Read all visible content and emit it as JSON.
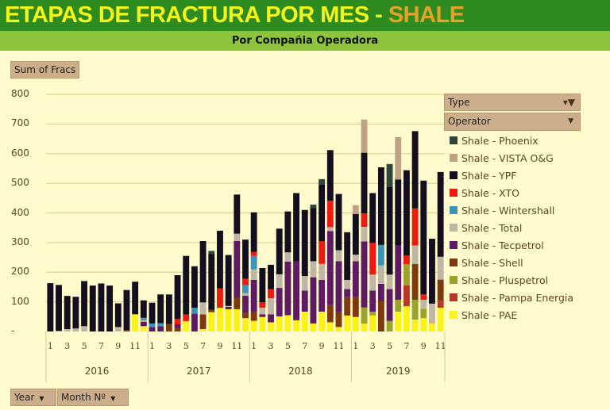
{
  "title": {
    "main": "ETAPAS DE FRACTURA POR MES - ",
    "highlight": "SHALE"
  },
  "subtitle": "Por Compañia Operadora",
  "value_field": "Sum of Fracs",
  "filters": {
    "type": "Type",
    "operator": "Operator",
    "year": "Year",
    "month": "Month Nº"
  },
  "colors": {
    "title_bg": "#2e8b1f",
    "subtitle_bg": "#8ec33c",
    "bg": "#fffbcc"
  },
  "chart_data": {
    "type": "bar",
    "stacked": true,
    "title": "ETAPAS DE FRACTURA POR MES - SHALE",
    "ylabel": "Sum of Fracs",
    "ylim": [
      0,
      800
    ],
    "yticks": [
      "-",
      "100",
      "200",
      "300",
      "400",
      "500",
      "600",
      "700",
      "800"
    ],
    "grid": true,
    "legend": "right",
    "years": [
      {
        "label": "2016",
        "months": 12
      },
      {
        "label": "2017",
        "months": 12
      },
      {
        "label": "2018",
        "months": 12
      },
      {
        "label": "2019",
        "months": 11
      }
    ],
    "month_labels": [
      "1",
      "",
      "3",
      "",
      "5",
      "",
      "7",
      "",
      "9",
      "",
      "11",
      ""
    ],
    "series": [
      {
        "name": "Shale - PAE",
        "color": "#fbf21a",
        "values": [
          0,
          0,
          0,
          0,
          0,
          0,
          0,
          0,
          0,
          0,
          58,
          18,
          0,
          0,
          0,
          0,
          35,
          0,
          8,
          65,
          80,
          75,
          75,
          45,
          36,
          49,
          31,
          51,
          55,
          38,
          67,
          27,
          67,
          31,
          15,
          54,
          49,
          27,
          54,
          0,
          0,
          67,
          85,
          40,
          45,
          27,
          80
        ]
      },
      {
        "name": "Shale - Pampa Energia",
        "color": "#b8362a",
        "values": [
          0,
          0,
          0,
          0,
          0,
          0,
          0,
          0,
          0,
          0,
          0,
          0,
          0,
          0,
          0,
          0,
          0,
          0,
          0,
          0,
          0,
          0,
          0,
          0,
          0,
          0,
          0,
          0,
          0,
          0,
          0,
          0,
          0,
          0,
          0,
          0,
          0,
          0,
          0,
          0,
          0,
          0,
          71,
          0,
          0,
          0,
          24
        ]
      },
      {
        "name": "Shale - Pluspetrol",
        "color": "#9aa32c",
        "values": [
          0,
          0,
          0,
          0,
          0,
          0,
          0,
          0,
          0,
          0,
          0,
          0,
          0,
          0,
          0,
          0,
          0,
          0,
          0,
          0,
          0,
          0,
          0,
          0,
          0,
          0,
          0,
          0,
          0,
          0,
          0,
          0,
          0,
          0,
          0,
          0,
          0,
          54,
          13,
          0,
          36,
          40,
          71,
          67,
          31,
          0,
          0
        ]
      },
      {
        "name": "Shale - Shell",
        "color": "#7e3a0c",
        "values": [
          0,
          0,
          0,
          0,
          0,
          0,
          0,
          0,
          0,
          5,
          0,
          0,
          0,
          0,
          25,
          12,
          0,
          0,
          50,
          8,
          0,
          0,
          40,
          18,
          31,
          0,
          0,
          0,
          0,
          0,
          0,
          0,
          0,
          58,
          52,
          62,
          67,
          0,
          0,
          103,
          0,
          0,
          0,
          121,
          0,
          0,
          71
        ]
      },
      {
        "name": "Shale - Tecpetrol",
        "color": "#5e1a63",
        "values": [
          0,
          0,
          0,
          0,
          0,
          0,
          0,
          0,
          0,
          0,
          0,
          15,
          15,
          18,
          0,
          12,
          0,
          60,
          0,
          0,
          0,
          8,
          190,
          58,
          107,
          9,
          27,
          96,
          181,
          199,
          71,
          156,
          107,
          250,
          170,
          27,
          121,
          223,
          71,
          58,
          107,
          183,
          0,
          0,
          0,
          0,
          0
        ]
      },
      {
        "name": "Shale - Total",
        "color": "#c0b6a6",
        "values": [
          0,
          2,
          8,
          10,
          18,
          0,
          0,
          0,
          15,
          0,
          0,
          5,
          0,
          0,
          0,
          0,
          0,
          0,
          40,
          0,
          0,
          3,
          25,
          8,
          36,
          22,
          54,
          46,
          31,
          0,
          49,
          54,
          54,
          13,
          37,
          31,
          22,
          49,
          54,
          62,
          49,
          0,
          0,
          62,
          31,
          67,
          77
        ]
      },
      {
        "name": "Shale - Wintershall",
        "color": "#3d93b5",
        "values": [
          0,
          0,
          0,
          0,
          0,
          0,
          0,
          0,
          0,
          0,
          0,
          8,
          12,
          10,
          0,
          0,
          0,
          20,
          0,
          0,
          0,
          0,
          0,
          27,
          45,
          0,
          0,
          0,
          0,
          0,
          0,
          0,
          0,
          0,
          0,
          0,
          0,
          0,
          0,
          69,
          0,
          0,
          0,
          0,
          0,
          0,
          0
        ]
      },
      {
        "name": "Shale - XTO",
        "color": "#ee1a12",
        "values": [
          0,
          0,
          0,
          0,
          0,
          0,
          0,
          0,
          0,
          0,
          0,
          0,
          0,
          0,
          0,
          18,
          22,
          0,
          0,
          0,
          65,
          0,
          0,
          22,
          13,
          18,
          31,
          0,
          0,
          0,
          0,
          0,
          76,
          89,
          0,
          0,
          0,
          45,
          107,
          0,
          0,
          0,
          29,
          125,
          18,
          0,
          0
        ]
      },
      {
        "name": "Shale - YPF",
        "color": "#130f1f",
        "values": [
          163,
          155,
          112,
          107,
          152,
          155,
          162,
          155,
          80,
          135,
          110,
          59,
          70,
          97,
          100,
          148,
          198,
          140,
          207,
          189,
          195,
          172,
          132,
          132,
          134,
          116,
          82,
          154,
          138,
          230,
          223,
          179,
          192,
          171,
          190,
          161,
          137,
          205,
          168,
          262,
          295,
          223,
          288,
          261,
          384,
          219,
          286
        ]
      },
      {
        "name": "Shale - VISTA O&G",
        "color": "#bfa281",
        "values": [
          0,
          0,
          0,
          0,
          0,
          0,
          0,
          0,
          0,
          0,
          0,
          0,
          0,
          0,
          0,
          0,
          0,
          0,
          0,
          0,
          0,
          0,
          0,
          0,
          0,
          0,
          0,
          0,
          0,
          0,
          0,
          0,
          0,
          0,
          0,
          0,
          30,
          112,
          0,
          0,
          0,
          143,
          0,
          0,
          0,
          0,
          0
        ]
      },
      {
        "name": "Shale - Phoenix",
        "color": "#2f463c",
        "values": [
          0,
          0,
          0,
          0,
          0,
          0,
          0,
          0,
          0,
          0,
          0,
          0,
          0,
          0,
          0,
          0,
          0,
          0,
          0,
          10,
          0,
          0,
          0,
          0,
          0,
          0,
          0,
          0,
          0,
          0,
          0,
          12,
          18,
          0,
          0,
          0,
          0,
          0,
          0,
          0,
          78,
          0,
          0,
          0,
          0,
          0,
          0
        ]
      }
    ]
  }
}
